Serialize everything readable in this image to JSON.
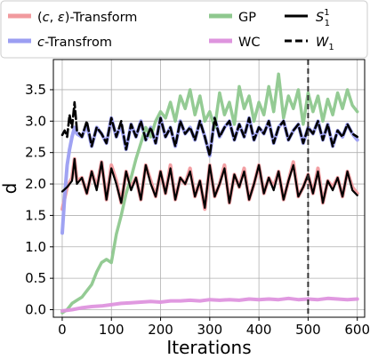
{
  "chart_data": {
    "type": "line",
    "title": "",
    "xlabel": "Iterations",
    "ylabel": "d",
    "xlim": [
      -18,
      615
    ],
    "ylim": [
      -0.12,
      3.98
    ],
    "xticks": [
      0,
      100,
      200,
      300,
      400,
      500,
      600
    ],
    "yticks": [
      0.0,
      0.5,
      1.0,
      1.5,
      2.0,
      2.5,
      3.0,
      3.5
    ],
    "ytick_labels": [
      "0.0",
      "0.5",
      "1.0",
      "1.5",
      "2.0",
      "2.5",
      "3.0",
      "3.5"
    ],
    "grid": true,
    "legend_position": "top",
    "vline": {
      "x": 500,
      "style": "dashed",
      "color": "#333333"
    },
    "series": [
      {
        "name": "(c, ε)-Transform",
        "color": "#f19a9e",
        "x": [
          0,
          10,
          20,
          25,
          30,
          40,
          50,
          60,
          70,
          80,
          90,
          100,
          110,
          120,
          130,
          140,
          150,
          160,
          170,
          180,
          190,
          200,
          210,
          220,
          230,
          240,
          250,
          260,
          270,
          280,
          290,
          300,
          310,
          320,
          330,
          340,
          350,
          360,
          370,
          380,
          390,
          400,
          410,
          420,
          430,
          440,
          450,
          460,
          470,
          480,
          490,
          500,
          510,
          520,
          530,
          540,
          550,
          560,
          570,
          580,
          590,
          600
        ],
        "values": [
          1.6,
          1.95,
          2.1,
          2.4,
          2.05,
          2.1,
          1.85,
          2.2,
          1.95,
          2.35,
          1.75,
          2.3,
          2.05,
          1.7,
          2.2,
          1.95,
          2.1,
          1.75,
          2.3,
          2.05,
          1.8,
          2.2,
          1.85,
          2.3,
          1.75,
          2.1,
          2.0,
          2.25,
          1.8,
          2.05,
          1.6,
          2.3,
          1.8,
          2.0,
          2.3,
          1.7,
          2.15,
          1.95,
          2.25,
          1.75,
          2.0,
          2.3,
          1.85,
          2.1,
          1.95,
          2.2,
          1.75,
          2.05,
          2.35,
          1.8,
          1.95,
          2.15,
          1.85,
          2.25,
          1.7,
          2.05,
          1.95,
          2.1,
          1.8,
          2.2,
          1.95,
          1.85
        ]
      },
      {
        "name": "c-Transfrom",
        "color": "#9b9ef2",
        "x": [
          0,
          5,
          10,
          15,
          20,
          25,
          30,
          40,
          50,
          60,
          70,
          80,
          90,
          100,
          110,
          120,
          130,
          140,
          150,
          160,
          170,
          180,
          190,
          200,
          210,
          220,
          230,
          240,
          250,
          260,
          270,
          280,
          290,
          300,
          310,
          320,
          330,
          340,
          350,
          360,
          370,
          380,
          390,
          400,
          410,
          420,
          430,
          440,
          450,
          460,
          470,
          480,
          490,
          500,
          510,
          520,
          530,
          540,
          550,
          560,
          570,
          580,
          590,
          600
        ],
        "values": [
          1.22,
          1.8,
          2.3,
          2.55,
          2.75,
          2.9,
          2.8,
          2.75,
          2.95,
          2.6,
          2.9,
          2.8,
          2.65,
          3.05,
          2.75,
          2.95,
          2.55,
          2.95,
          2.75,
          3.0,
          2.7,
          2.9,
          2.65,
          3.05,
          2.75,
          2.9,
          2.6,
          3.0,
          2.8,
          2.9,
          2.7,
          3.0,
          2.75,
          2.45,
          3.05,
          2.75,
          2.9,
          3.0,
          2.7,
          2.95,
          2.75,
          3.05,
          2.7,
          2.9,
          2.8,
          3.0,
          2.65,
          2.9,
          3.0,
          2.7,
          2.85,
          2.95,
          2.65,
          2.9,
          2.8,
          3.0,
          2.7,
          2.95,
          2.6,
          2.85,
          2.75,
          2.95,
          2.8,
          2.7
        ]
      },
      {
        "name": "GP",
        "color": "#8ec88e",
        "x": [
          0,
          10,
          20,
          30,
          40,
          50,
          60,
          70,
          80,
          90,
          100,
          110,
          120,
          130,
          140,
          150,
          160,
          170,
          180,
          190,
          200,
          210,
          220,
          230,
          240,
          250,
          260,
          270,
          280,
          290,
          300,
          310,
          320,
          330,
          340,
          350,
          360,
          370,
          380,
          390,
          400,
          410,
          420,
          430,
          440,
          450,
          460,
          470,
          480,
          490,
          500,
          510,
          520,
          530,
          540,
          550,
          560,
          570,
          580,
          590,
          600
        ],
        "values": [
          -0.05,
          0.0,
          0.1,
          0.15,
          0.2,
          0.3,
          0.4,
          0.6,
          0.75,
          0.8,
          0.75,
          1.2,
          1.5,
          1.85,
          2.1,
          2.4,
          2.65,
          2.9,
          2.75,
          3.0,
          3.15,
          3.05,
          3.3,
          3.0,
          3.4,
          3.2,
          3.5,
          3.1,
          3.4,
          3.0,
          3.15,
          2.9,
          3.45,
          3.1,
          3.3,
          2.95,
          3.55,
          3.2,
          3.4,
          3.0,
          3.3,
          3.1,
          3.55,
          3.15,
          3.75,
          3.05,
          3.4,
          3.2,
          3.5,
          2.95,
          3.45,
          3.15,
          3.4,
          3.0,
          3.35,
          3.1,
          3.45,
          3.2,
          3.5,
          3.25,
          3.15
        ]
      },
      {
        "name": "WC",
        "color": "#de94de",
        "x": [
          0,
          20,
          40,
          60,
          80,
          100,
          120,
          140,
          160,
          180,
          200,
          220,
          240,
          260,
          280,
          300,
          320,
          340,
          360,
          380,
          400,
          420,
          440,
          460,
          480,
          500,
          520,
          540,
          560,
          580,
          600
        ],
        "values": [
          -0.02,
          0.0,
          0.03,
          0.05,
          0.06,
          0.08,
          0.1,
          0.11,
          0.12,
          0.13,
          0.12,
          0.14,
          0.14,
          0.15,
          0.14,
          0.16,
          0.15,
          0.16,
          0.15,
          0.17,
          0.16,
          0.17,
          0.16,
          0.18,
          0.16,
          0.17,
          0.16,
          0.18,
          0.17,
          0.16,
          0.17
        ]
      },
      {
        "name": "S_1^1",
        "color": "#000000",
        "x": [
          0,
          10,
          20,
          25,
          30,
          40,
          50,
          60,
          70,
          80,
          90,
          100,
          110,
          120,
          130,
          140,
          150,
          160,
          170,
          180,
          190,
          200,
          210,
          220,
          230,
          240,
          250,
          260,
          270,
          280,
          290,
          300,
          310,
          320,
          330,
          340,
          350,
          360,
          370,
          380,
          390,
          400,
          410,
          420,
          430,
          440,
          450,
          460,
          470,
          480,
          490,
          500,
          510,
          520,
          530,
          540,
          550,
          560,
          570,
          580,
          590,
          600
        ],
        "values": [
          1.88,
          1.95,
          2.05,
          2.4,
          2.0,
          2.1,
          1.85,
          2.2,
          1.9,
          2.35,
          1.75,
          2.25,
          2.0,
          1.7,
          2.2,
          1.9,
          2.1,
          1.75,
          2.3,
          2.0,
          1.8,
          2.2,
          1.85,
          2.25,
          1.75,
          2.1,
          2.0,
          2.2,
          1.8,
          2.05,
          1.62,
          2.3,
          1.8,
          2.0,
          2.25,
          1.7,
          2.15,
          1.95,
          2.2,
          1.75,
          2.0,
          2.3,
          1.85,
          2.1,
          1.9,
          2.2,
          1.75,
          2.05,
          2.3,
          1.8,
          1.95,
          2.15,
          1.85,
          2.2,
          1.7,
          2.05,
          1.9,
          2.1,
          1.8,
          2.2,
          1.9,
          1.82
        ]
      },
      {
        "name": "W_1",
        "color": "#000000",
        "dashed": true,
        "x": [
          0,
          5,
          10,
          15,
          20,
          25,
          30,
          40,
          50,
          60,
          70,
          80,
          90,
          100,
          110,
          120,
          130,
          140,
          150,
          160,
          170,
          180,
          190,
          200,
          210,
          220,
          230,
          240,
          250,
          260,
          270,
          280,
          290,
          300,
          310,
          320,
          330,
          340,
          350,
          360,
          370,
          380,
          390,
          400,
          410,
          420,
          430,
          440,
          450,
          460,
          470,
          480,
          490,
          500,
          510,
          520,
          530,
          540,
          550,
          560,
          570,
          580,
          590,
          600
        ],
        "values": [
          2.78,
          2.85,
          2.75,
          3.1,
          2.9,
          3.3,
          2.85,
          2.75,
          3.0,
          2.6,
          2.9,
          2.8,
          2.65,
          3.05,
          2.75,
          3.0,
          2.55,
          2.95,
          2.75,
          3.0,
          2.7,
          2.9,
          2.65,
          3.05,
          2.75,
          2.9,
          2.6,
          3.0,
          2.8,
          2.9,
          2.7,
          3.0,
          2.75,
          2.45,
          3.05,
          2.75,
          2.9,
          3.0,
          2.7,
          2.95,
          2.75,
          3.05,
          2.7,
          2.9,
          2.8,
          3.0,
          2.65,
          2.9,
          3.0,
          2.7,
          2.85,
          2.95,
          2.65,
          2.9,
          2.8,
          3.0,
          2.7,
          2.95,
          2.6,
          2.85,
          2.75,
          2.95,
          2.8,
          2.75
        ]
      }
    ]
  },
  "legend": {
    "items": [
      {
        "id": "ce",
        "label": "(c, ε)-Transform"
      },
      {
        "id": "c",
        "label": "c-Transfrom"
      },
      {
        "id": "gp",
        "label": "GP"
      },
      {
        "id": "wc",
        "label": "WC"
      },
      {
        "id": "s11",
        "label": "S"
      },
      {
        "id": "w1",
        "label": "W"
      }
    ]
  }
}
